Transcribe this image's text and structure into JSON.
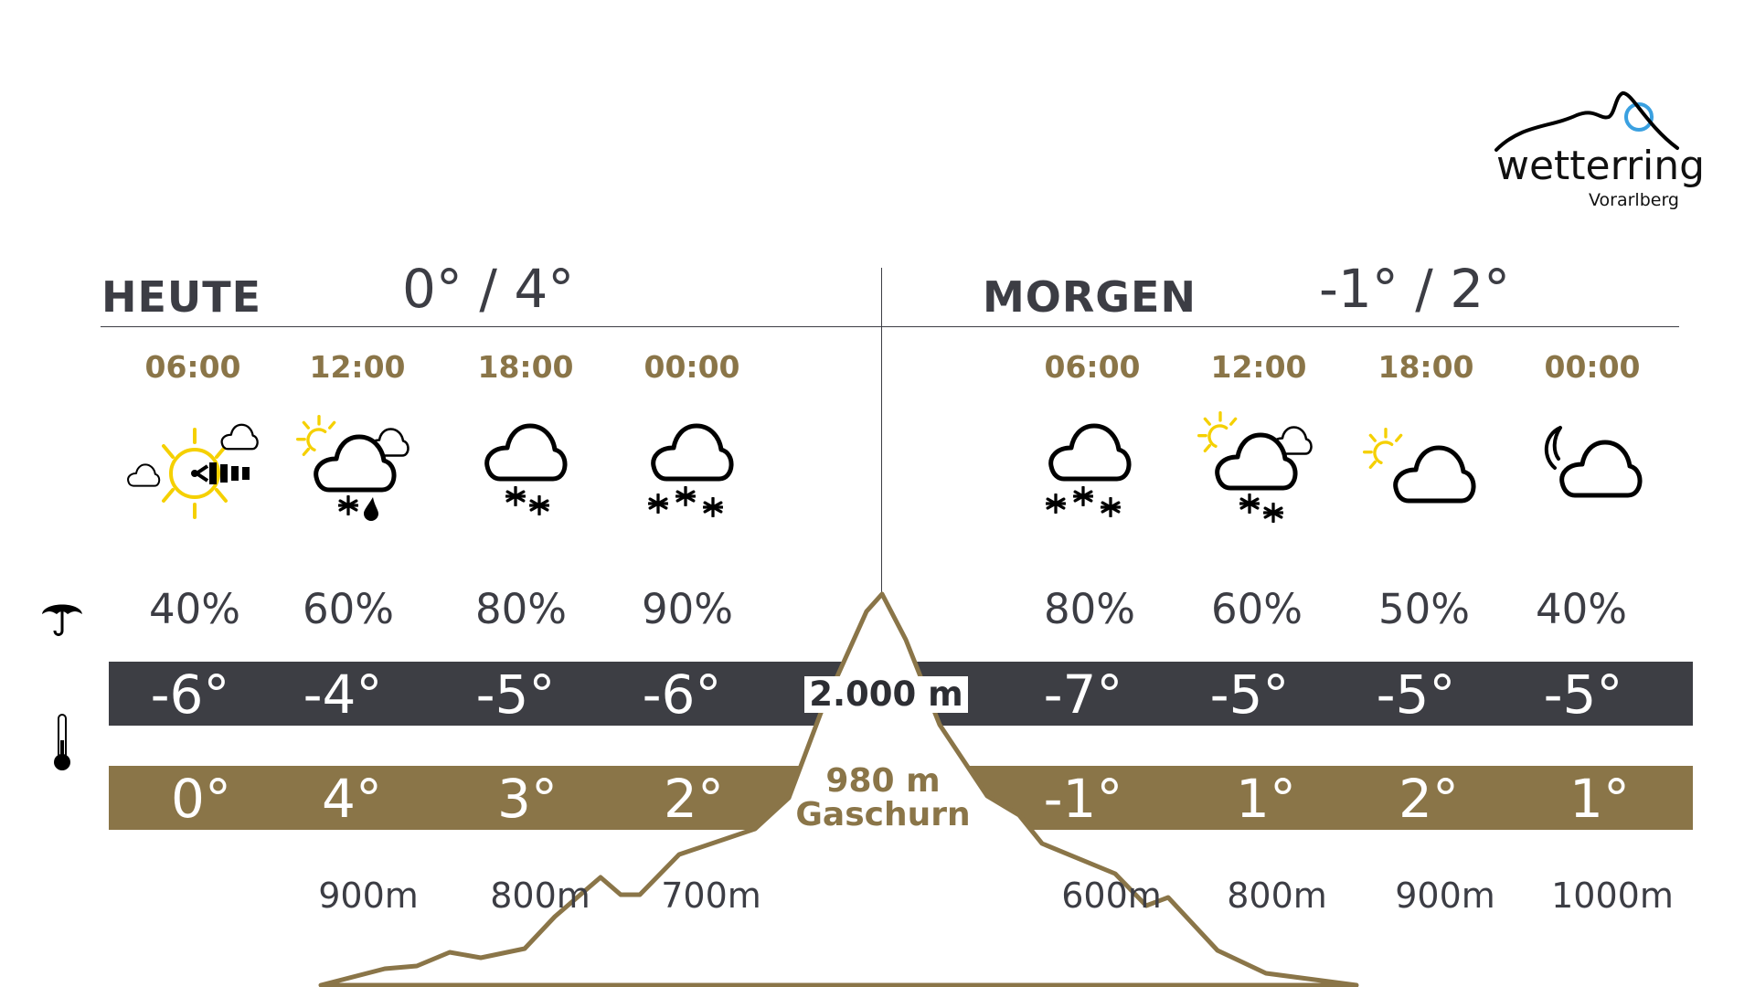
{
  "logo": {
    "name": "wetterring",
    "region": "Vorarlberg",
    "accent_color": "#3aa0e0"
  },
  "colors": {
    "gold": "#8a7548",
    "dark_bar": "#3d3e44",
    "text": "#3c3d44",
    "sun": "#f5d000"
  },
  "row_icons": {
    "precipitation": "umbrella-icon",
    "temperature": "thermometer-icon"
  },
  "days": [
    {
      "label": "HEUTE",
      "range": "0° / 4°",
      "slots": [
        {
          "time": "06:00",
          "icon": "sun-wind-clouds",
          "precip": "40%",
          "temp_2000": "-6°",
          "temp_980": "0°",
          "snowline": ""
        },
        {
          "time": "12:00",
          "icon": "sun-cloud-sleet",
          "precip": "60%",
          "temp_2000": "-4°",
          "temp_980": "4°",
          "snowline": "900m"
        },
        {
          "time": "18:00",
          "icon": "cloud-snow",
          "precip": "80%",
          "temp_2000": "-5°",
          "temp_980": "3°",
          "snowline": "800m"
        },
        {
          "time": "00:00",
          "icon": "cloud-heavy-snow",
          "precip": "90%",
          "temp_2000": "-6°",
          "temp_980": "2°",
          "snowline": "700m"
        }
      ]
    },
    {
      "label": "MORGEN",
      "range": "-1° / 2°",
      "slots": [
        {
          "time": "06:00",
          "icon": "cloud-heavy-snow",
          "precip": "80%",
          "temp_2000": "-7°",
          "temp_980": "-1°",
          "snowline": "600m"
        },
        {
          "time": "12:00",
          "icon": "sun-cloud-snow",
          "precip": "60%",
          "temp_2000": "-5°",
          "temp_980": "1°",
          "snowline": "800m"
        },
        {
          "time": "18:00",
          "icon": "sun-cloud",
          "precip": "50%",
          "temp_2000": "-5°",
          "temp_980": "2°",
          "snowline": "900m"
        },
        {
          "time": "00:00",
          "icon": "moon-cloud",
          "precip": "40%",
          "temp_2000": "-5°",
          "temp_980": "1°",
          "snowline": "1000m"
        }
      ]
    }
  ],
  "altitudes": {
    "high": "2.000 m",
    "low": "980 m",
    "location": "Gaschurn"
  }
}
